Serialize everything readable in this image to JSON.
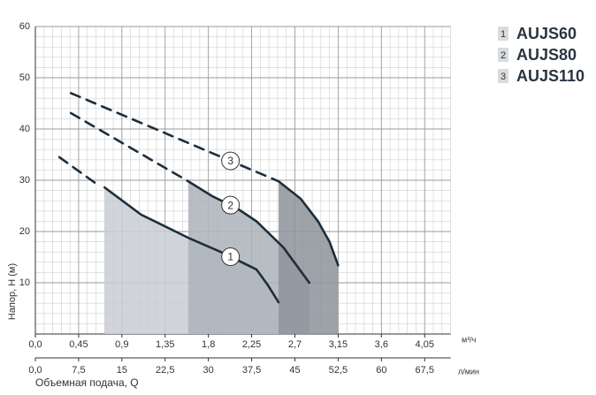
{
  "chart_data": {
    "type": "line",
    "y_label": "Напор, H (м)",
    "x_label": "Объемная подача, Q",
    "x_unit": "м³/ч",
    "x2_unit": "л/мин",
    "xlim": [
      0,
      4.32
    ],
    "xticks": [
      {
        "value": 0,
        "label": "0,0"
      },
      {
        "value": 0.45,
        "label": "0,45"
      },
      {
        "value": 0.9,
        "label": "0,9"
      },
      {
        "value": 1.35,
        "label": "1,35"
      },
      {
        "value": 1.8,
        "label": "1,8"
      },
      {
        "value": 2.25,
        "label": "2,25"
      },
      {
        "value": 2.7,
        "label": "2,7"
      },
      {
        "value": 3.15,
        "label": "3,15"
      },
      {
        "value": 3.6,
        "label": "3,6"
      },
      {
        "value": 4.05,
        "label": "4,05"
      }
    ],
    "x2lim": [
      0,
      72
    ],
    "x2ticks": [
      {
        "value": 0,
        "label": "0,0"
      },
      {
        "value": 7.5,
        "label": "7,5"
      },
      15,
      {
        "value": 22.5,
        "label": "22,5"
      },
      30,
      {
        "value": 37.5,
        "label": "37,5"
      },
      45,
      {
        "value": 52.5,
        "label": "52,5"
      },
      60,
      {
        "value": 67.5,
        "label": "67,5"
      }
    ],
    "ylim": [
      0,
      60
    ],
    "yticks": [
      10,
      20,
      30,
      40,
      50,
      60
    ],
    "grid": true,
    "minor_grid": 5,
    "line_color": "#1d2e3c",
    "series": [
      {
        "name": "AUJS60",
        "marker_label": "1",
        "color": "#c9ced5",
        "dashed": {
          "x": [
            0.25,
            0.62
          ],
          "values": [
            34.5,
            29.5
          ]
        },
        "solid": {
          "x": [
            0.72,
            1.1,
            1.61,
            1.93,
            2.3,
            2.42,
            2.53
          ],
          "values": [
            28.6,
            23.3,
            18.6,
            16.0,
            12.6,
            9.5,
            6.2
          ]
        }
      },
      {
        "name": "AUJS80",
        "marker_label": "2",
        "color": "#adb3bb",
        "dashed": {
          "x": [
            0.37,
            1.59
          ],
          "values": [
            43.1,
            29.8
          ]
        },
        "solid": {
          "x": [
            1.59,
            1.84,
            2.1,
            2.3,
            2.58,
            2.85
          ],
          "values": [
            29.8,
            26.9,
            24.5,
            22.0,
            16.9,
            10.0
          ]
        }
      },
      {
        "name": "AUJS110",
        "marker_label": "3",
        "color": "#8d939b",
        "dashed": {
          "x": [
            0.37,
            2.53
          ],
          "values": [
            47.0,
            29.8
          ]
        },
        "solid": {
          "x": [
            2.53,
            2.76,
            2.94,
            3.06,
            3.15
          ],
          "values": [
            29.8,
            26.4,
            22.0,
            18.0,
            13.4
          ]
        }
      }
    ]
  }
}
